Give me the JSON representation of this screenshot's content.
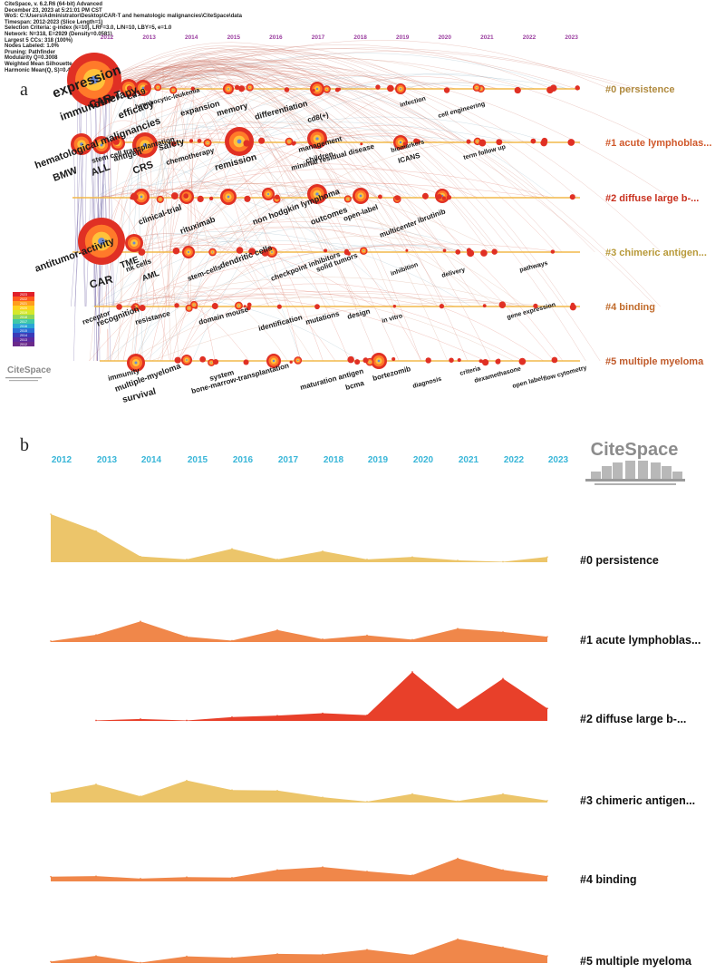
{
  "panel_a": {
    "letter": "a",
    "meta_lines": [
      "CiteSpace, v. 6.2.R6 (64-bit) Advanced",
      "December 23, 2023 at 5:21:01 PM CST",
      "WoS: C:\\Users\\Administrator\\Desktop\\CAR-T and hematologic malignancies\\CiteSpace\\data",
      "Timespan: 2012-2023 (Slice Length=1)",
      "Selection Criteria: g-index (k=10), LRF=3.0, L/N=10, LBY=5, e=1.0",
      "Network: N=318, E=2929 (Density=0.0581)",
      "Largest 5 CCs: 318 (100%)",
      "Nodes Labeled: 1.0%",
      "Pruning: Pathfinder",
      "Modularity Q=0.3008",
      "Weighted Mean Silhouette S=0.6644",
      "Harmonic Mean(Q, S)=0.4142"
    ],
    "logo": "CiteSpace",
    "legend_years": [
      "2023",
      "2022",
      "2021",
      "2020",
      "2019",
      "2018",
      "2017",
      "2016",
      "2015",
      "2014",
      "2013",
      "2012"
    ],
    "legend_colors": [
      "#e0202a",
      "#ff5a1e",
      "#ff9e1e",
      "#ffd21e",
      "#d6e82a",
      "#8fd65a",
      "#3fc8a8",
      "#2aa6d6",
      "#2a6ed6",
      "#3a3ab8",
      "#5a2aa0",
      "#6a2a8a"
    ],
    "cluster_colors": [
      "#b08a3e",
      "#d0582a",
      "#c8301e",
      "#b89a3a",
      "#c06a2a",
      "#c05a2a"
    ]
  },
  "panel_b": {
    "letter": "b",
    "logo": "CiteSpace"
  },
  "chart_data": {
    "type": "area",
    "title": "",
    "x": [
      "2012",
      "2013",
      "2014",
      "2015",
      "2016",
      "2017",
      "2018",
      "2019",
      "2020",
      "2021",
      "2022",
      "2023"
    ],
    "series": [
      {
        "name": "#0 persistence",
        "color": "#ecc56a",
        "values": [
          10,
          6.5,
          1.2,
          0.6,
          2.8,
          0.6,
          2.3,
          0.6,
          1.1,
          0.4,
          0.1,
          1.1
        ]
      },
      {
        "name": "#1 acute lymphoblas...",
        "color": "#f0874a",
        "values": [
          0.2,
          1.5,
          4.3,
          1.1,
          0.3,
          2.5,
          0.6,
          1.4,
          0.5,
          2.8,
          2.1,
          1.1
        ]
      },
      {
        "name": "#2 diffuse large b-...",
        "color": "#e8402a",
        "values": [
          null,
          0.1,
          0.4,
          0.1,
          0.8,
          1.1,
          1.6,
          1.2,
          10.2,
          2.4,
          8.8,
          2.6
        ]
      },
      {
        "name": "#3 chimeric antigen...",
        "color": "#ecc56a",
        "values": [
          2.0,
          3.8,
          1.3,
          4.6,
          2.6,
          2.5,
          1.1,
          0.2,
          1.8,
          0.3,
          1.8,
          0.4
        ]
      },
      {
        "name": "#4 binding",
        "color": "#f0874a",
        "values": [
          1.0,
          1.1,
          0.6,
          0.9,
          0.8,
          2.4,
          3.0,
          2.1,
          1.3,
          4.8,
          2.4,
          1.1
        ]
      },
      {
        "name": "#5 multiple myeloma",
        "color": "#f0874a",
        "values": [
          0.3,
          1.5,
          0.1,
          1.4,
          1.1,
          1.9,
          1.8,
          2.8,
          1.7,
          5.0,
          3.3,
          1.5
        ]
      }
    ],
    "ylim": [
      0,
      11
    ],
    "legend": "right",
    "grid": false
  }
}
